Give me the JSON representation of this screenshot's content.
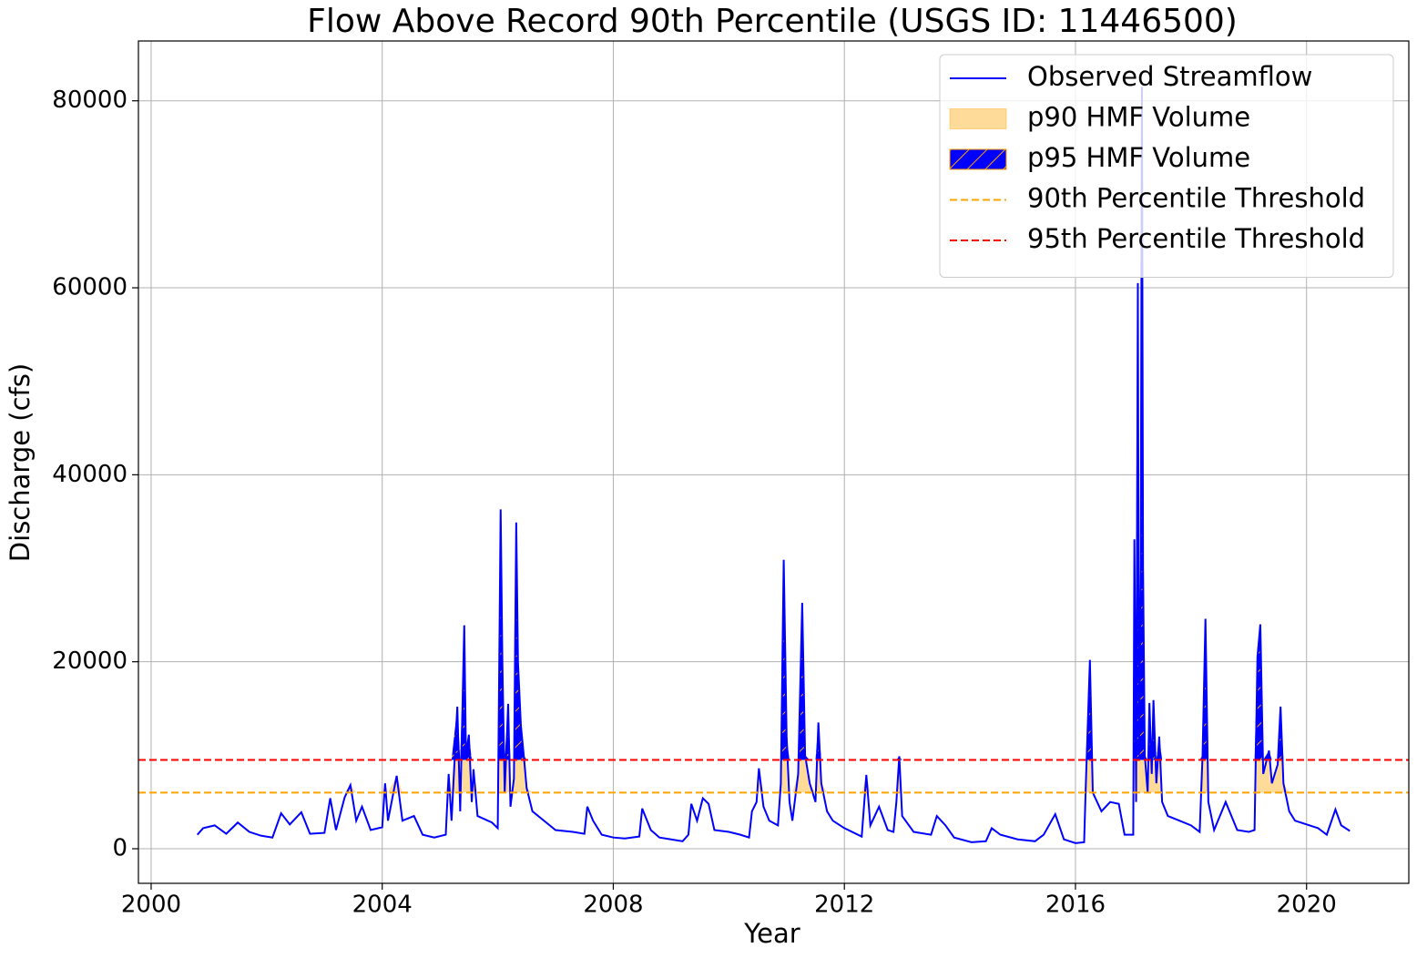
{
  "chart_data": {
    "type": "line",
    "title": "Flow Above Record 90th Percentile (USGS ID: 11446500)",
    "xlabel": "Year",
    "ylabel": "Discharge (cfs)",
    "xlim": [
      1999.78,
      2021.77
    ],
    "ylim": [
      -3700,
      86400
    ],
    "xticks": [
      2000,
      2004,
      2008,
      2012,
      2016,
      2020
    ],
    "yticks": [
      0,
      20000,
      40000,
      60000,
      80000
    ],
    "grid": true,
    "legend": "upper right",
    "x": [
      2000.8,
      2000.9,
      2001.1,
      2001.3,
      2001.5,
      2001.7,
      2001.9,
      2002.1,
      2002.25,
      2002.4,
      2002.6,
      2002.75,
      2003.0,
      2003.1,
      2003.2,
      2003.35,
      2003.45,
      2003.55,
      2003.65,
      2003.8,
      2004.0,
      2004.05,
      2004.1,
      2004.25,
      2004.35,
      2004.55,
      2004.7,
      2004.9,
      2005.1,
      2005.15,
      2005.2,
      2005.3,
      2005.35,
      2005.42,
      2005.45,
      2005.5,
      2005.55,
      2005.58,
      2005.65,
      2005.9,
      2006.0,
      2006.05,
      2006.08,
      2006.12,
      2006.18,
      2006.22,
      2006.28,
      2006.32,
      2006.35,
      2006.4,
      2006.45,
      2006.5,
      2006.6,
      2006.9,
      2007.0,
      2007.3,
      2007.5,
      2007.55,
      2007.65,
      2007.8,
      2008.0,
      2008.2,
      2008.45,
      2008.5,
      2008.65,
      2008.8,
      2009.0,
      2009.2,
      2009.3,
      2009.35,
      2009.45,
      2009.55,
      2009.65,
      2009.75,
      2010.0,
      2010.2,
      2010.35,
      2010.4,
      2010.48,
      2010.52,
      2010.6,
      2010.7,
      2010.85,
      2010.9,
      2010.95,
      2011.0,
      2011.05,
      2011.1,
      2011.2,
      2011.27,
      2011.32,
      2011.4,
      2011.5,
      2011.55,
      2011.6,
      2011.7,
      2011.8,
      2012.0,
      2012.3,
      2012.38,
      2012.45,
      2012.6,
      2012.75,
      2012.85,
      2012.9,
      2012.95,
      2013.0,
      2013.2,
      2013.5,
      2013.6,
      2013.75,
      2013.9,
      2014.2,
      2014.45,
      2014.55,
      2014.7,
      2015.0,
      2015.3,
      2015.45,
      2015.65,
      2015.8,
      2016.0,
      2016.15,
      2016.18,
      2016.25,
      2016.3,
      2016.45,
      2016.6,
      2016.75,
      2016.85,
      2017.0,
      2017.02,
      2017.05,
      2017.08,
      2017.1,
      2017.13,
      2017.15,
      2017.17,
      2017.2,
      2017.25,
      2017.28,
      2017.32,
      2017.35,
      2017.4,
      2017.45,
      2017.5,
      2017.6,
      2017.8,
      2018.0,
      2018.15,
      2018.2,
      2018.25,
      2018.3,
      2018.4,
      2018.6,
      2018.8,
      2019.0,
      2019.1,
      2019.15,
      2019.2,
      2019.25,
      2019.35,
      2019.4,
      2019.5,
      2019.55,
      2019.6,
      2019.7,
      2019.8,
      2020.0,
      2020.2,
      2020.35,
      2020.5,
      2020.6,
      2020.75
    ],
    "series": [
      {
        "name": "Observed Streamflow",
        "color": "#0000ff",
        "values": [
          1500,
          2200,
          2500,
          1600,
          2800,
          1800,
          1400,
          1200,
          3800,
          2600,
          3900,
          1600,
          1700,
          5400,
          2000,
          5500,
          6800,
          3000,
          4500,
          2000,
          2300,
          7000,
          3000,
          7800,
          3000,
          3500,
          1500,
          1200,
          1500,
          8000,
          3000,
          15200,
          4000,
          23900,
          10000,
          12200,
          5000,
          8500,
          3500,
          2800,
          2200,
          36300,
          20000,
          6000,
          15500,
          4500,
          7500,
          34900,
          20000,
          13200,
          10000,
          6500,
          4000,
          2500,
          2000,
          1800,
          1600,
          4500,
          3000,
          1500,
          1200,
          1100,
          1300,
          4300,
          2000,
          1200,
          1000,
          800,
          1500,
          4800,
          3000,
          5400,
          4800,
          2000,
          1800,
          1500,
          1200,
          4000,
          5000,
          8600,
          4500,
          3000,
          2500,
          7000,
          30900,
          12000,
          5000,
          3000,
          8000,
          26300,
          10000,
          7000,
          5000,
          13500,
          7000,
          4000,
          3000,
          2200,
          1300,
          7900,
          2500,
          4500,
          2000,
          1800,
          5000,
          9900,
          3500,
          1800,
          1500,
          3500,
          2500,
          1200,
          700,
          800,
          2200,
          1500,
          1000,
          800,
          1500,
          3700,
          1000,
          600,
          700,
          7000,
          20200,
          6000,
          4000,
          5000,
          4800,
          1500,
          1500,
          33100,
          5000,
          60500,
          10000,
          30000,
          81500,
          30000,
          10000,
          6000,
          15600,
          8000,
          15900,
          7000,
          12000,
          5000,
          3500,
          3000,
          2500,
          1800,
          10000,
          24600,
          5000,
          2000,
          5000,
          2000,
          1800,
          2000,
          20500,
          24000,
          8000,
          10500,
          7000,
          9000,
          15200,
          7000,
          4000,
          3000,
          2600,
          2200,
          1500,
          4200,
          2500,
          1900
        ]
      }
    ],
    "areas": [
      {
        "name": "p90 HMF Volume",
        "color": "#ffa500"
      },
      {
        "name": "p95 HMF Volume",
        "color": "#0000ff",
        "hatch_color": "#ffa500"
      }
    ],
    "hlines": [
      {
        "name": "90th Percentile Threshold",
        "value": 6000,
        "color": "#ffa500"
      },
      {
        "name": "95th Percentile Threshold",
        "value": 9500,
        "color": "#ff0000"
      }
    ]
  }
}
